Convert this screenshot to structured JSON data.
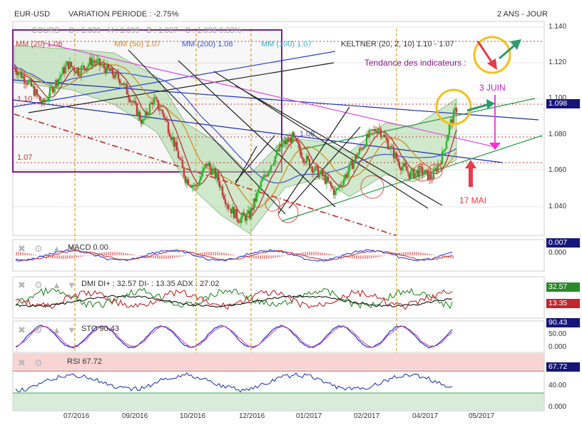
{
  "header": {
    "symbol": "EUR-USD",
    "variation_label": "VARIATION PERIODE : -2.75%",
    "period": "2 ANS - JOUR"
  },
  "legend": {
    "cours": "COURS",
    "ohlc": "O : 1.089 · H : 1.099 · B : 1.087 · C : 1.098 0.83%",
    "mm20": "MM (20) 1.08",
    "mm50": "MM (50) 1.07",
    "mm200": "MM (200) 1.08",
    "mm100": "MM (100) 1.07",
    "keltner": "KELTNER (20, 2, 10) 1.10 - 1.07"
  },
  "annotations": {
    "trend": "Tendance des indicateurs :",
    "juin": "3 JUIN",
    "mai": "17 MAI",
    "lvl_110": "1.10",
    "lvl_107": "1.07",
    "lvl_108": "1.08"
  },
  "panels": {
    "macd": "MACD 0.00",
    "dmi": "DMI DI+ : 32.57 DI- : 13.35 ADX : 27.02",
    "sto": "STO 90.43",
    "rsi": "RSI 67.72"
  },
  "value_boxes": {
    "price": "1.098",
    "macd": "0.007",
    "dmi_plus": "32.57",
    "dmi_minus": "13.35",
    "sto": "90.43",
    "rsi": "67.72"
  },
  "controls": {
    "close": "✖",
    "gear": "⚙",
    "up": "▲",
    "down": "▼"
  },
  "colors": {
    "bull": "#2bb32b",
    "bear": "#c43c3c",
    "value_box": "#15157a",
    "dmi_minus_box": "#c0262d",
    "dmi_plus_box": "#2a8a2a",
    "purple": "#7a1f8a",
    "keltner_fill": "#a9d6a0",
    "magenta": "#ff2bd6",
    "red_arrow": "#e63c4c",
    "green_arrow": "#2e9a6a",
    "yellow": "#f2c218",
    "orange_vline": "#d6a21c"
  },
  "chart_data": {
    "type": "candlestick",
    "title": "EUR-USD",
    "x_ticks": [
      "07/2016",
      "09/2016",
      "10/2016",
      "12/2016",
      "01/2017",
      "02/2017",
      "04/2017",
      "05/2017"
    ],
    "y_ticks": [
      "1.140",
      "1.120",
      "1.100",
      "1.080",
      "1.060",
      "1.040"
    ],
    "ylim": [
      1.029,
      1.142
    ],
    "last_close": 1.098,
    "close_path": [
      [
        0,
        1.12
      ],
      [
        20,
        1.112
      ],
      [
        40,
        1.1
      ],
      [
        55,
        1.11
      ],
      [
        75,
        1.122
      ],
      [
        90,
        1.118
      ],
      [
        110,
        1.124
      ],
      [
        130,
        1.119
      ],
      [
        150,
        1.113
      ],
      [
        165,
        1.102
      ],
      [
        180,
        1.09
      ],
      [
        195,
        1.103
      ],
      [
        210,
        1.094
      ],
      [
        225,
        1.078
      ],
      [
        240,
        1.06
      ],
      [
        255,
        1.055
      ],
      [
        270,
        1.068
      ],
      [
        285,
        1.06
      ],
      [
        300,
        1.045
      ],
      [
        315,
        1.038
      ],
      [
        330,
        1.04
      ],
      [
        345,
        1.056
      ],
      [
        360,
        1.068
      ],
      [
        375,
        1.078
      ],
      [
        390,
        1.082
      ],
      [
        405,
        1.072
      ],
      [
        420,
        1.065
      ],
      [
        435,
        1.06
      ],
      [
        450,
        1.052
      ],
      [
        465,
        1.062
      ],
      [
        480,
        1.072
      ],
      [
        495,
        1.082
      ],
      [
        510,
        1.088
      ],
      [
        525,
        1.078
      ],
      [
        540,
        1.068
      ],
      [
        555,
        1.062
      ],
      [
        570,
        1.064
      ],
      [
        585,
        1.06
      ],
      [
        600,
        1.072
      ],
      [
        610,
        1.088
      ],
      [
        620,
        1.098
      ]
    ],
    "keltner_channel": {
      "upper": [
        [
          0,
          1.132
        ],
        [
          80,
          1.13
        ],
        [
          140,
          1.128
        ],
        [
          200,
          1.115
        ],
        [
          240,
          1.09
        ],
        [
          290,
          1.078
        ],
        [
          330,
          1.062
        ],
        [
          380,
          1.082
        ],
        [
          430,
          1.08
        ],
        [
          470,
          1.074
        ],
        [
          520,
          1.09
        ],
        [
          560,
          1.088
        ],
        [
          620,
          1.103
        ]
      ],
      "lower": [
        [
          0,
          1.112
        ],
        [
          80,
          1.108
        ],
        [
          140,
          1.1
        ],
        [
          200,
          1.085
        ],
        [
          240,
          1.058
        ],
        [
          290,
          1.04
        ],
        [
          330,
          1.03
        ],
        [
          380,
          1.055
        ],
        [
          430,
          1.06
        ],
        [
          470,
          1.05
        ],
        [
          520,
          1.062
        ],
        [
          560,
          1.058
        ],
        [
          620,
          1.07
        ]
      ]
    },
    "macd": {
      "value": 0.0,
      "last": 0.007,
      "ylabel": "0.000"
    },
    "dmi": {
      "di_plus": 32.57,
      "di_minus": 13.35,
      "adx": 27.02
    },
    "stochastic": {
      "value": 90.43,
      "yticks": [
        "50.00",
        "0.000"
      ]
    },
    "rsi": {
      "value": 67.72,
      "yticks": [
        "40.00",
        "0.000"
      ]
    }
  }
}
